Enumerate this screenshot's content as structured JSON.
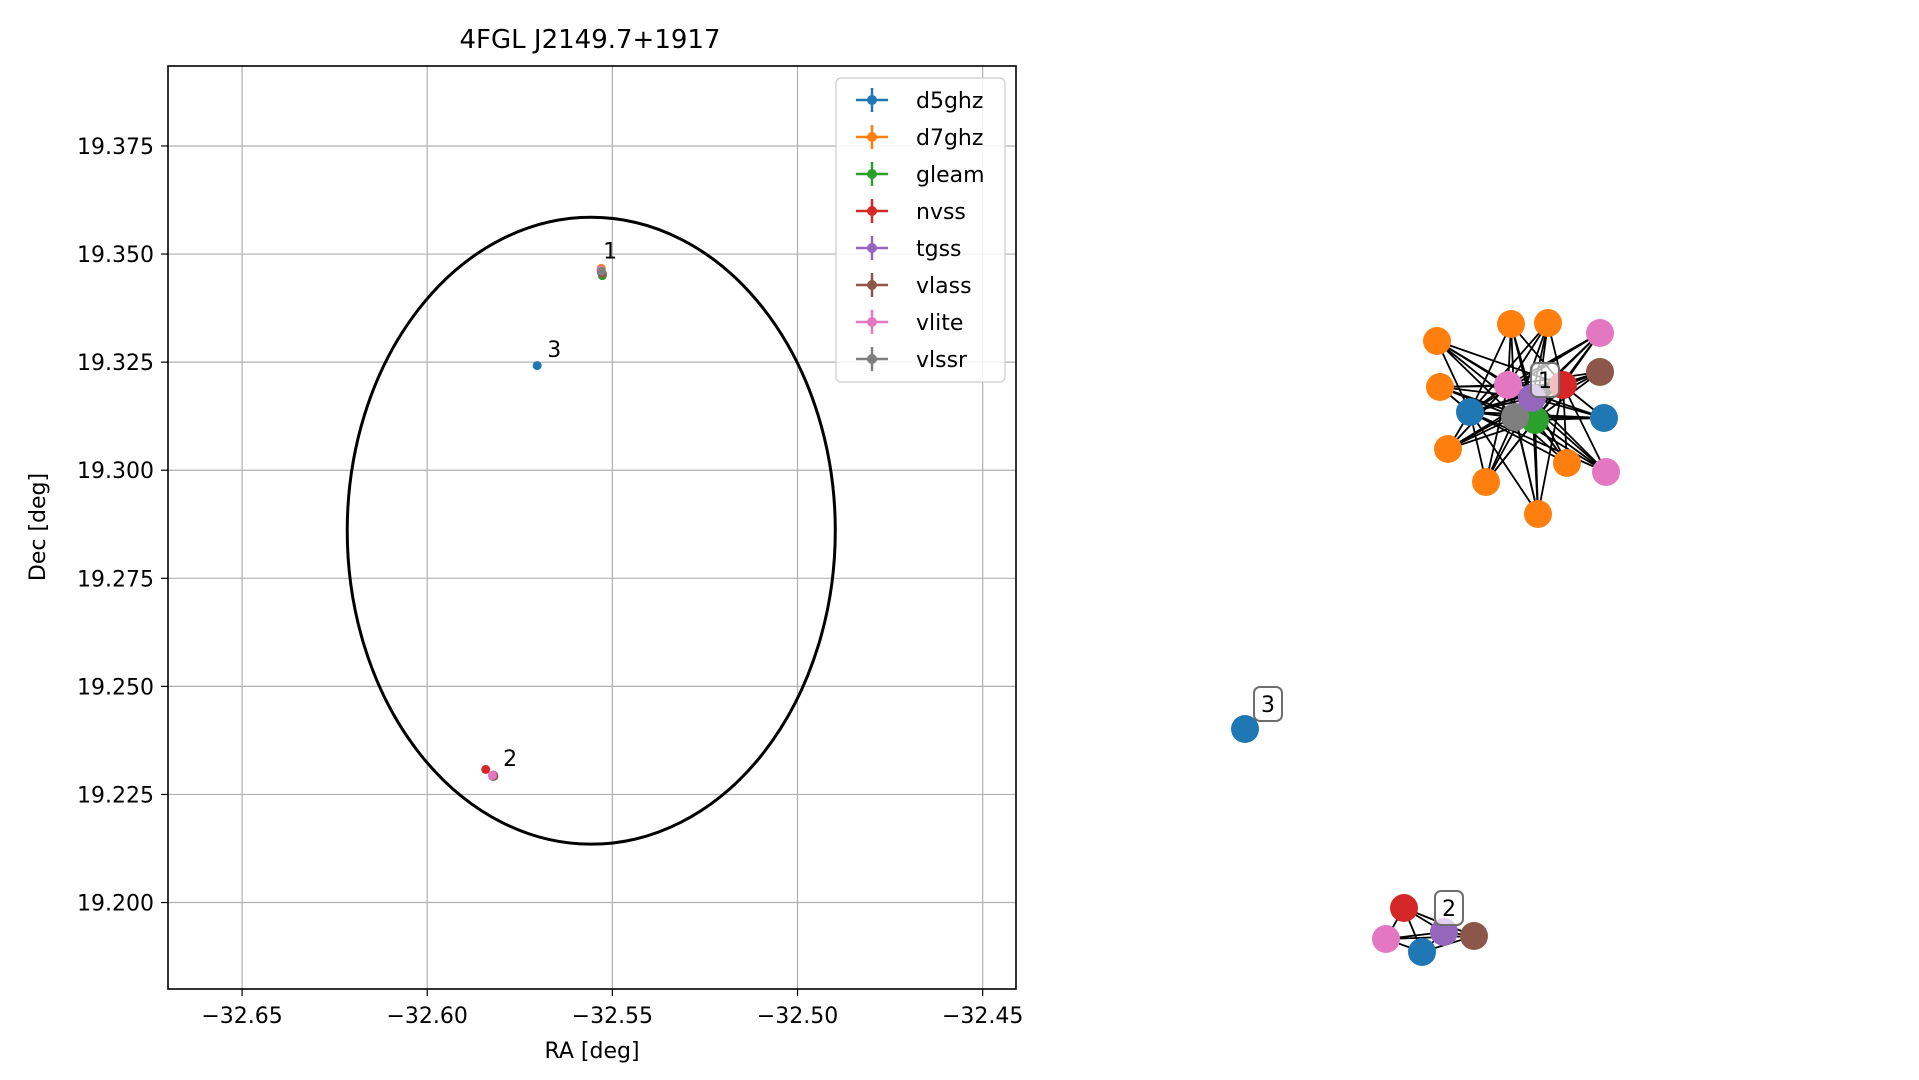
{
  "chart_data": [
    {
      "type": "scatter",
      "title": "4FGL J2149.7+1917",
      "xlabel": "RA [deg]",
      "ylabel": "Dec [deg]",
      "xlim": [
        -32.67,
        -32.441
      ],
      "ylim": [
        19.18,
        19.3935
      ],
      "grid": true,
      "legend_position": "top-right",
      "xticks": [
        -32.65,
        -32.6,
        -32.55,
        -32.5,
        -32.45
      ],
      "xtick_labels": [
        "−32.65",
        "−32.60",
        "−32.55",
        "−32.50",
        "−32.45"
      ],
      "yticks": [
        19.2,
        19.225,
        19.25,
        19.275,
        19.3,
        19.325,
        19.35,
        19.375
      ],
      "ytick_labels": [
        "19.200",
        "19.225",
        "19.250",
        "19.275",
        "19.300",
        "19.325",
        "19.350",
        "19.375"
      ],
      "ellipse": {
        "center": [
          -32.5557,
          19.286
        ],
        "semi_major_ra": 0.0659,
        "semi_minor_dec": 0.0725
      },
      "series": [
        {
          "name": "d5ghz",
          "color": "#1f77b4",
          "points": [
            [
              -32.5703,
              19.3242
            ],
            [
              -32.5823,
              19.2292
            ]
          ]
        },
        {
          "name": "d7ghz",
          "color": "#ff7f0e",
          "points": [
            [
              -32.553,
              19.3467
            ]
          ]
        },
        {
          "name": "gleam",
          "color": "#2ca02c",
          "points": [
            [
              -32.5527,
              19.345
            ]
          ]
        },
        {
          "name": "nvss",
          "color": "#d62728",
          "points": [
            [
              -32.5842,
              19.2308
            ]
          ]
        },
        {
          "name": "tgss",
          "color": "#9467bd",
          "points": [
            [
              -32.553,
              19.3458
            ],
            [
              -32.5821,
              19.2295
            ]
          ]
        },
        {
          "name": "vlass",
          "color": "#8c564b",
          "points": [
            [
              -32.5527,
              19.3455
            ],
            [
              -32.582,
              19.2292
            ]
          ]
        },
        {
          "name": "vlite",
          "color": "#e377c2",
          "points": [
            [
              -32.5531,
              19.3463
            ],
            [
              -32.5824,
              19.2294
            ]
          ]
        },
        {
          "name": "vlssr",
          "color": "#7f7f7f",
          "points": [
            [
              -32.5529,
              19.346
            ]
          ]
        }
      ],
      "annotations": [
        {
          "text": "1",
          "x": -32.5525,
          "y": 19.349
        },
        {
          "text": "2",
          "x": -32.5795,
          "y": 19.2316
        },
        {
          "text": "3",
          "x": -32.5676,
          "y": 19.3262
        }
      ]
    },
    {
      "type": "network",
      "clusters": [
        {
          "label": "1",
          "node_colors": [
            "#d62728",
            "#9467bd",
            "#7f7f7f",
            "#2ca02c",
            "#e377c2",
            "#1f77b4",
            "#1f77b4",
            "#e377c2",
            "#e377c2",
            "#8c564b",
            "#ff7f0e",
            "#ff7f0e",
            "#ff7f0e",
            "#ff7f0e",
            "#ff7f0e",
            "#ff7f0e",
            "#ff7f0e",
            "#ff7f0e"
          ]
        },
        {
          "label": "2",
          "node_colors": [
            "#d62728",
            "#e377c2",
            "#1f77b4",
            "#9467bd",
            "#8c564b"
          ]
        },
        {
          "label": "3",
          "node_colors": [
            "#1f77b4"
          ]
        }
      ]
    }
  ]
}
